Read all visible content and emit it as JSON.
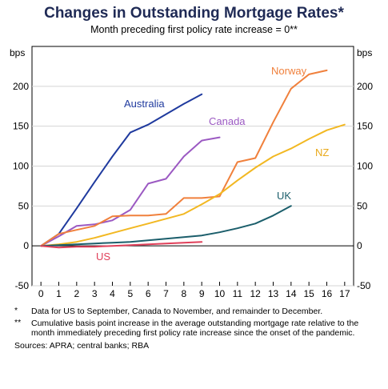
{
  "title": "Changes in Outstanding Mortgage Rates*",
  "subtitle": "Month preceding first policy rate increase = 0**",
  "notes": [
    {
      "mark": "*",
      "text": "Data for US to September, Canada to November, and remainder to December."
    },
    {
      "mark": "**",
      "text": "Cumulative basis point increase in the average outstanding mortgage rate relative to the month immediately preceding first policy rate increase since the onset of the pandemic."
    }
  ],
  "sources": "Sources: APRA; central banks; RBA",
  "chart_data": {
    "type": "line",
    "ylabel_left": "bps",
    "ylabel_right": "bps",
    "xlim": [
      -0.5,
      17.5
    ],
    "ylim": [
      -50,
      250
    ],
    "x_ticks": [
      "0",
      "1",
      "2",
      "3",
      "4",
      "5",
      "6",
      "7",
      "8",
      "9",
      "10",
      "11",
      "12",
      "13",
      "14",
      "15",
      "16",
      "17"
    ],
    "y_ticks": [
      "-50",
      "0",
      "50",
      "100",
      "150",
      "200"
    ],
    "series": [
      {
        "name": "Australia",
        "color": "#1f3a9e",
        "x": [
          0,
          1,
          2,
          3,
          4,
          5,
          6,
          7,
          8,
          9
        ],
        "y": [
          0,
          15,
          47,
          80,
          112,
          142,
          152,
          165,
          178,
          190
        ]
      },
      {
        "name": "Canada",
        "color": "#9b59c2",
        "x": [
          0,
          1,
          2,
          3,
          4,
          5,
          6,
          7,
          8,
          9,
          10
        ],
        "y": [
          0,
          12,
          25,
          27,
          32,
          45,
          78,
          84,
          112,
          132,
          136
        ]
      },
      {
        "name": "Norway",
        "color": "#f0803c",
        "x": [
          0,
          1,
          2,
          3,
          4,
          5,
          6,
          7,
          8,
          9,
          10,
          11,
          12,
          13,
          14,
          15,
          16
        ],
        "y": [
          0,
          15,
          20,
          25,
          37,
          38,
          38,
          40,
          60,
          60,
          62,
          105,
          110,
          155,
          197,
          215,
          220
        ]
      },
      {
        "name": "NZ",
        "color": "#f2b822",
        "x": [
          0,
          1,
          2,
          3,
          4,
          5,
          6,
          7,
          8,
          9,
          10,
          11,
          12,
          13,
          14,
          15,
          16,
          17
        ],
        "y": [
          0,
          2,
          5,
          10,
          16,
          22,
          28,
          34,
          40,
          52,
          65,
          82,
          98,
          112,
          122,
          134,
          145,
          152
        ]
      },
      {
        "name": "UK",
        "color": "#1b5e6b",
        "x": [
          0,
          1,
          2,
          3,
          4,
          5,
          6,
          7,
          8,
          9,
          10,
          11,
          12,
          13,
          14
        ],
        "y": [
          0,
          1,
          2,
          3,
          4,
          5,
          7,
          9,
          11,
          13,
          17,
          22,
          28,
          38,
          50
        ]
      },
      {
        "name": "US",
        "color": "#e0405a",
        "x": [
          0,
          1,
          2,
          3,
          4,
          5,
          6,
          7,
          8,
          9
        ],
        "y": [
          0,
          -2,
          -1,
          -1,
          0,
          1,
          2,
          3,
          4,
          5
        ]
      }
    ],
    "series_labels": [
      "Australia",
      "Canada",
      "Norway",
      "NZ",
      "UK",
      "US"
    ]
  }
}
